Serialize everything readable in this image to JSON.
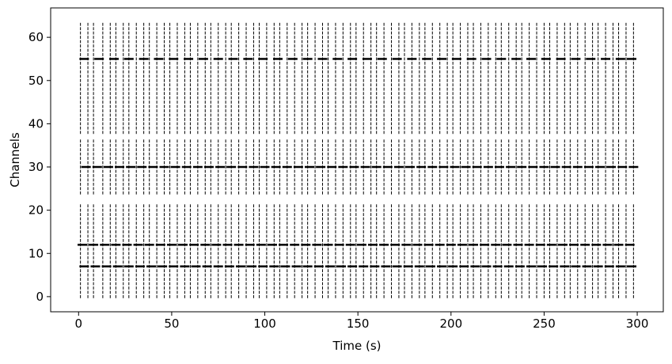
{
  "chart_data": {
    "type": "raster",
    "xlabel": "Time (s)",
    "ylabel": "Channels",
    "color": "#000000",
    "xlim": [
      -15,
      314
    ],
    "ylim": [
      -3.5,
      66.8
    ],
    "xticks": [
      0,
      50,
      100,
      150,
      200,
      250,
      300
    ],
    "yticks": [
      0,
      10,
      20,
      30,
      40,
      50,
      60
    ],
    "channels": [
      0,
      1,
      2,
      3,
      4,
      5,
      6,
      7,
      8,
      9,
      10,
      11,
      12,
      13,
      14,
      15,
      16,
      17,
      18,
      19,
      20,
      21,
      24,
      25,
      26,
      27,
      28,
      29,
      30,
      31,
      32,
      33,
      34,
      35,
      36,
      38,
      39,
      40,
      41,
      42,
      43,
      44,
      45,
      46,
      47,
      48,
      49,
      50,
      51,
      52,
      53,
      54,
      55,
      56,
      57,
      58,
      59,
      60,
      61,
      62,
      63
    ],
    "burst_times": [
      1,
      5,
      8,
      13,
      17,
      20,
      24,
      27,
      31,
      35,
      38,
      42,
      46,
      49,
      53,
      57,
      60,
      64,
      68,
      71,
      75,
      79,
      82,
      86,
      90,
      94,
      97,
      101,
      105,
      108,
      112,
      116,
      120,
      123,
      127,
      131,
      134,
      138,
      142,
      146,
      149,
      153,
      157,
      160,
      164,
      168,
      172,
      175,
      179,
      183,
      186,
      190,
      194,
      198,
      201,
      205,
      209,
      212,
      216,
      220,
      224,
      227,
      231,
      235,
      238,
      242,
      246,
      250,
      253,
      257,
      261,
      264,
      268,
      272,
      276,
      279,
      283,
      287,
      290,
      294,
      298
    ],
    "tonic": [
      {
        "channel": 7,
        "x": [
          3,
          9,
          15,
          21,
          27,
          33,
          39,
          45,
          51,
          57,
          63,
          69,
          75,
          81,
          87,
          93,
          99,
          105,
          111,
          117,
          123,
          129,
          135,
          141,
          147,
          153,
          159,
          165,
          171,
          177,
          183,
          189,
          195,
          201,
          207,
          213,
          219,
          225,
          231,
          237,
          243,
          249,
          255,
          261,
          267,
          273,
          279,
          285,
          291,
          297
        ]
      },
      {
        "channel": 12,
        "x": [
          2,
          8,
          14,
          20,
          26,
          32,
          38,
          44,
          50,
          56,
          62,
          68,
          74,
          80,
          86,
          92,
          98,
          104,
          110,
          116,
          122,
          128,
          134,
          140,
          146,
          152,
          158,
          164,
          170,
          176,
          182,
          188,
          194,
          200,
          206,
          212,
          218,
          224,
          230,
          236,
          242,
          248,
          254,
          260,
          266,
          272,
          278,
          284,
          290,
          296
        ]
      },
      {
        "channel": 30,
        "x": [
          4,
          10,
          16,
          22,
          28,
          34,
          40,
          46,
          52,
          58,
          64,
          70,
          76,
          82,
          88,
          94,
          100,
          106,
          112,
          118,
          124,
          130,
          136,
          142,
          148,
          154,
          160,
          166,
          172,
          178,
          184,
          190,
          196,
          202,
          208,
          214,
          220,
          226,
          232,
          238,
          244,
          250,
          256,
          262,
          268,
          274,
          280,
          286,
          292,
          298
        ]
      },
      {
        "channel": 55,
        "x": [
          3,
          11,
          19,
          27,
          35,
          43,
          51,
          59,
          67,
          75,
          83,
          91,
          99,
          107,
          115,
          123,
          131,
          139,
          147,
          155,
          163,
          171,
          179,
          187,
          195,
          203,
          211,
          219,
          227,
          235,
          243,
          251,
          259,
          267,
          275,
          283,
          291,
          297
        ]
      }
    ]
  }
}
